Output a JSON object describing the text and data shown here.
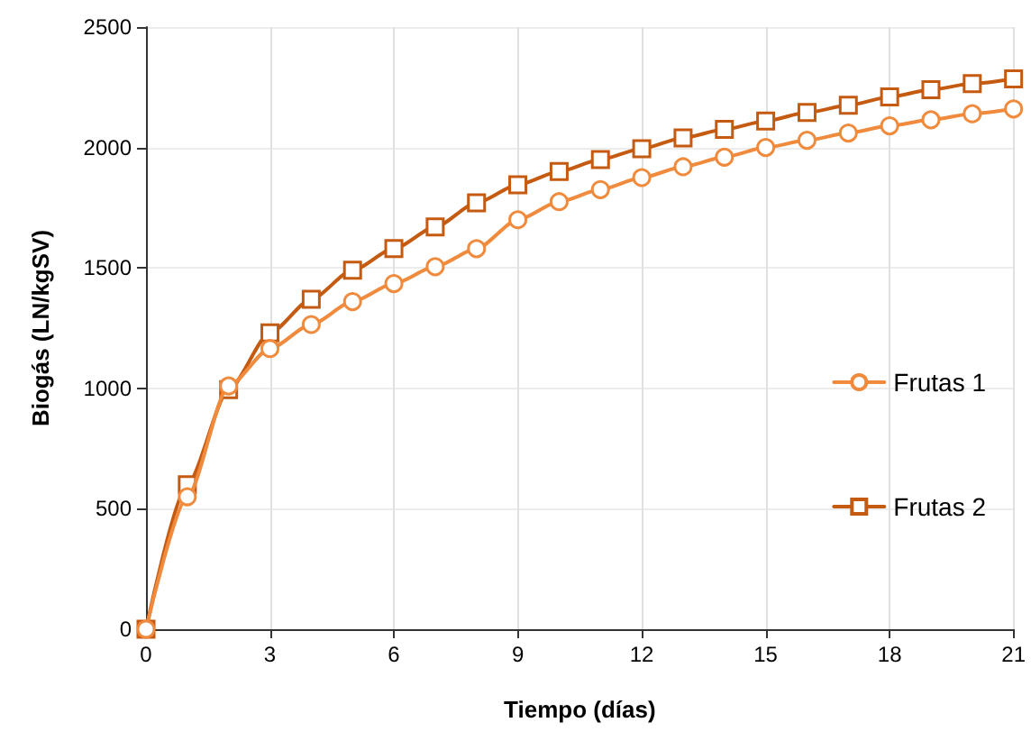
{
  "chart_data": {
    "type": "line",
    "xlabel": "Tiempo (días)",
    "ylabel": "Biogás (LN/kgSV)",
    "x": [
      0,
      1,
      2,
      3,
      4,
      5,
      6,
      7,
      8,
      9,
      10,
      11,
      12,
      13,
      14,
      15,
      16,
      17,
      18,
      19,
      20,
      21
    ],
    "series": [
      {
        "name": "Frutas 1",
        "color": "#f08a3c",
        "marker": "circle",
        "values": [
          0,
          550,
          1010,
          1165,
          1265,
          1360,
          1435,
          1505,
          1580,
          1700,
          1775,
          1825,
          1875,
          1920,
          1960,
          2000,
          2030,
          2060,
          2090,
          2115,
          2140,
          2160
        ]
      },
      {
        "name": "Frutas 2",
        "color": "#c55a11",
        "marker": "square",
        "values": [
          0,
          600,
          995,
          1230,
          1370,
          1490,
          1580,
          1670,
          1770,
          1845,
          1900,
          1950,
          1995,
          2040,
          2075,
          2110,
          2145,
          2175,
          2210,
          2240,
          2265,
          2285
        ]
      }
    ],
    "xlim": [
      0,
      21
    ],
    "xticks": [
      0,
      3,
      6,
      9,
      12,
      15,
      18,
      21
    ],
    "ylim": [
      0,
      2500
    ],
    "yticks": [
      0,
      500,
      1000,
      1500,
      2000,
      2500
    ],
    "grid": true,
    "legend": "right",
    "line_style": "solid"
  }
}
